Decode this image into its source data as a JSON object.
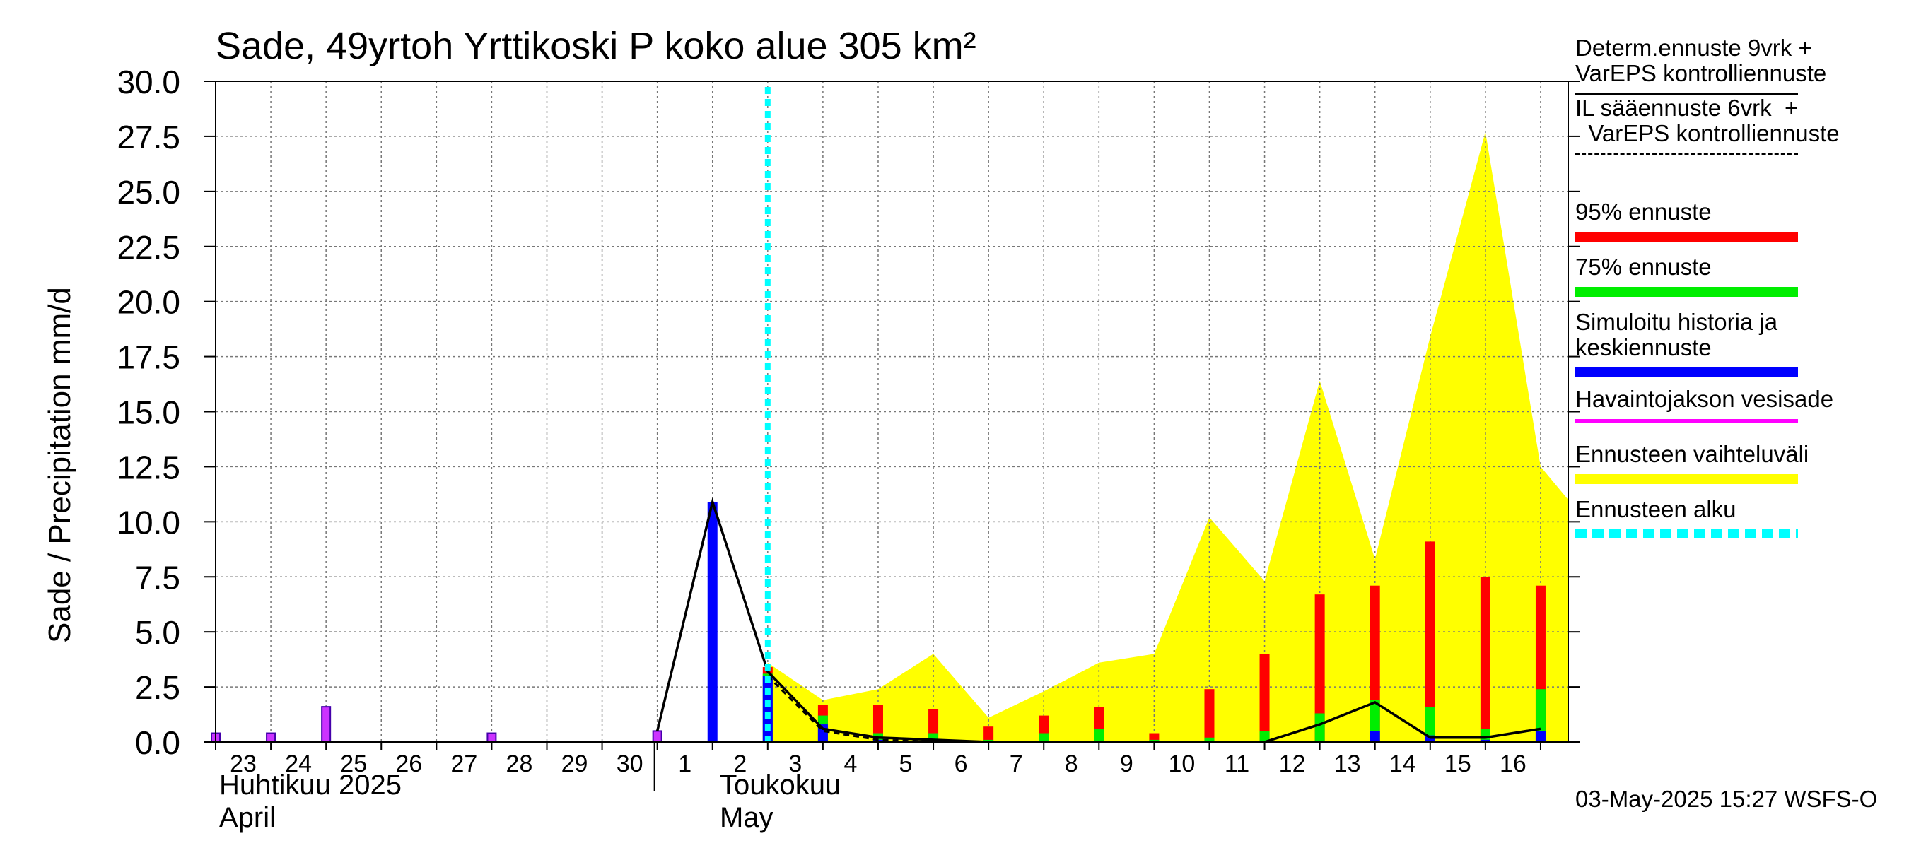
{
  "title": "Sade, 49yrtoh Yrttikoski P koko alue 305 km²",
  "ylabel": "Sade / Precipitation   mm/d",
  "footer": "03-May-2025 15:27 WSFS-O",
  "months": [
    {
      "fi": "Huhtikuu  2025",
      "en": "April"
    },
    {
      "fi": "Toukokuu",
      "en": "May"
    }
  ],
  "legend": [
    {
      "text": "Determ.ennuste 9vrk +\nVarEPS kontrolliennuste",
      "color": "#000000",
      "style": "solid-thin"
    },
    {
      "text": "IL sääennuste 6vrk  +\n  VarEPS kontrolliennuste",
      "color": "#000000",
      "style": "dashed-thin"
    },
    {
      "text": "95% ennuste",
      "color": "#ff0000",
      "style": "thick"
    },
    {
      "text": "75% ennuste",
      "color": "#00ee00",
      "style": "thick"
    },
    {
      "text": "Simuloitu historia ja\nkeskiennuste",
      "color": "#0000ff",
      "style": "thick"
    },
    {
      "text": "Havaintojakson vesisade",
      "color": "#ff00ff",
      "style": "medium"
    },
    {
      "text": "Ennusteen vaihteluväli",
      "color": "#ffff00",
      "style": "thick"
    },
    {
      "text": "Ennusteen alku",
      "color": "#00ffff",
      "style": "dotted-thick"
    }
  ],
  "chart_data": {
    "type": "bar",
    "title": "Sade, 49yrtoh Yrttikoski P koko alue 305 km²",
    "ylabel": "Sade / Precipitation   mm/d",
    "ylim": [
      0,
      30
    ],
    "yticks": [
      "0.0",
      "2.5",
      "5.0",
      "7.5",
      "10.0",
      "12.5",
      "15.0",
      "17.5",
      "20.0",
      "22.5",
      "25.0",
      "27.5",
      "30.0"
    ],
    "day_index_range": [
      0,
      24.5
    ],
    "day_labels": [
      "23",
      "24",
      "25",
      "26",
      "27",
      "28",
      "29",
      "30",
      "1",
      "2",
      "3",
      "4",
      "5",
      "6",
      "7",
      "8",
      "9",
      "10",
      "11",
      "12",
      "13",
      "14",
      "15",
      "16"
    ],
    "forecast_start_day": 10,
    "grid": true,
    "legend_position": "right",
    "series": [
      {
        "name": "Havaintojakson vesisade",
        "color": "#ff00ff",
        "kind": "bars",
        "points": [
          [
            0,
            0.4
          ],
          [
            1,
            0.4
          ],
          [
            2,
            1.6
          ],
          [
            5,
            0.4
          ],
          [
            8,
            0.5
          ]
        ]
      },
      {
        "name": "Simuloitu historia ja keskiennuste",
        "color": "#0000ff",
        "kind": "bars",
        "points": [
          [
            9,
            10.9
          ],
          [
            10,
            3.0
          ],
          [
            11,
            0.8
          ],
          [
            12,
            0.1
          ],
          [
            13,
            0.1
          ],
          [
            20,
            0.05
          ],
          [
            21,
            0.5
          ],
          [
            22,
            0.3
          ],
          [
            23,
            0.1
          ],
          [
            24,
            0.5
          ]
        ]
      },
      {
        "name": "75% ennuste",
        "color": "#00ee00",
        "kind": "bars",
        "points": [
          [
            10,
            3.1
          ],
          [
            11,
            1.2
          ],
          [
            12,
            0.4
          ],
          [
            13,
            0.4
          ],
          [
            14,
            0.1
          ],
          [
            15,
            0.4
          ],
          [
            16,
            0.6
          ],
          [
            17,
            0.1
          ],
          [
            18,
            0.2
          ],
          [
            19,
            0.5
          ],
          [
            20,
            1.3
          ],
          [
            21,
            1.9
          ],
          [
            22,
            1.6
          ],
          [
            23,
            0.6
          ],
          [
            24,
            2.4
          ]
        ]
      },
      {
        "name": "95% ennuste",
        "color": "#ff0000",
        "kind": "bars",
        "points": [
          [
            10,
            3.4
          ],
          [
            11,
            1.7
          ],
          [
            12,
            1.7
          ],
          [
            13,
            1.5
          ],
          [
            14,
            0.7
          ],
          [
            15,
            1.2
          ],
          [
            16,
            1.6
          ],
          [
            17,
            0.4
          ],
          [
            18,
            2.4
          ],
          [
            19,
            4.0
          ],
          [
            20,
            6.7
          ],
          [
            21,
            7.1
          ],
          [
            22,
            9.1
          ],
          [
            23,
            7.5
          ],
          [
            24,
            7.1
          ]
        ]
      },
      {
        "name": "Ennusteen vaihteluväli",
        "color": "#ffff00",
        "kind": "area",
        "points": [
          [
            10,
            3.6
          ],
          [
            11,
            1.9
          ],
          [
            12,
            2.4
          ],
          [
            13,
            4.0
          ],
          [
            14,
            1.1
          ],
          [
            15,
            2.3
          ],
          [
            16,
            3.6
          ],
          [
            17,
            4.0
          ],
          [
            18,
            10.2
          ],
          [
            19,
            7.3
          ],
          [
            20,
            16.4
          ],
          [
            21,
            8.3
          ],
          [
            22,
            18.4
          ],
          [
            23,
            27.7
          ],
          [
            24,
            12.5
          ],
          [
            24.5,
            11.0
          ]
        ]
      },
      {
        "name": "Determ.ennuste 9vrk + VarEPS kontrolliennuste",
        "color": "#000000",
        "kind": "line",
        "points": [
          [
            8,
            0.5
          ],
          [
            9,
            10.9
          ],
          [
            10,
            3.2
          ],
          [
            11,
            0.6
          ],
          [
            12,
            0.2
          ],
          [
            13,
            0.1
          ],
          [
            14,
            0.0
          ],
          [
            15,
            0.0
          ],
          [
            16,
            0.0
          ],
          [
            17,
            0.0
          ],
          [
            18,
            0.0
          ],
          [
            19,
            0.0
          ],
          [
            20,
            0.8
          ],
          [
            21,
            1.8
          ],
          [
            22,
            0.2
          ],
          [
            23,
            0.2
          ],
          [
            24,
            0.6
          ]
        ]
      },
      {
        "name": "IL sääennuste 6vrk + VarEPS kontrolliennuste",
        "color": "#000000",
        "kind": "dashed-line",
        "points": [
          [
            10,
            3.0
          ],
          [
            11,
            0.5
          ],
          [
            12,
            0.1
          ],
          [
            13,
            0.0
          ],
          [
            14,
            0.0
          ],
          [
            15,
            0.0
          ],
          [
            16,
            0.0
          ]
        ]
      }
    ]
  }
}
